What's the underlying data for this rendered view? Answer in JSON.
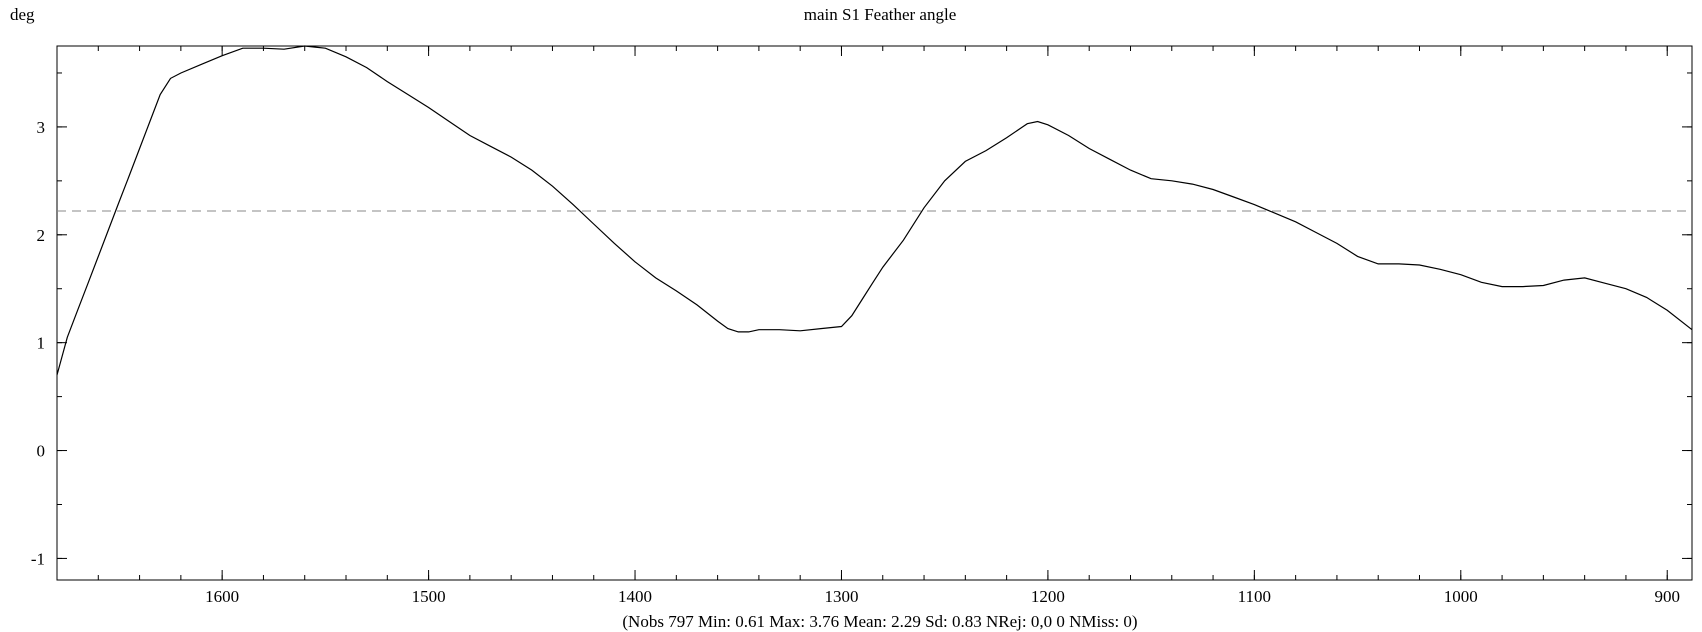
{
  "chart_data": {
    "type": "line",
    "title": "main S1 Feather angle",
    "ylabel": "deg",
    "xlabel": "",
    "caption": "(Nobs 797 Min: 0.61 Max: 3.76 Mean: 2.29 Sd: 0.83 NRej: 0,0 0 NMiss: 0)",
    "xlim": [
      1680,
      888
    ],
    "ylim": [
      -1.2,
      3.75
    ],
    "x_ticks": [
      1600,
      1500,
      1400,
      1300,
      1200,
      1100,
      1000,
      900
    ],
    "x_tick_labels": [
      "1600",
      "1500",
      "1400",
      "1300",
      "1200",
      "1100",
      "1000",
      "900"
    ],
    "y_ticks": [
      -1,
      0,
      1,
      2,
      3
    ],
    "y_tick_labels": [
      "-1",
      "0",
      "1",
      "2",
      "3"
    ],
    "reference_line": {
      "y": 2.22,
      "style": "dashed",
      "color": "#888888"
    },
    "series": [
      {
        "color": "#000000",
        "x": [
          1680,
          1675,
          1670,
          1665,
          1660,
          1655,
          1650,
          1645,
          1640,
          1635,
          1630,
          1625,
          1620,
          1610,
          1600,
          1590,
          1580,
          1570,
          1560,
          1555,
          1550,
          1540,
          1530,
          1520,
          1510,
          1500,
          1490,
          1480,
          1470,
          1460,
          1450,
          1440,
          1430,
          1420,
          1410,
          1400,
          1390,
          1380,
          1370,
          1360,
          1355,
          1350,
          1345,
          1340,
          1330,
          1320,
          1310,
          1300,
          1295,
          1290,
          1285,
          1280,
          1270,
          1260,
          1250,
          1240,
          1230,
          1220,
          1210,
          1205,
          1200,
          1190,
          1180,
          1170,
          1160,
          1150,
          1140,
          1130,
          1120,
          1110,
          1100,
          1090,
          1080,
          1070,
          1060,
          1050,
          1040,
          1030,
          1020,
          1010,
          1000,
          990,
          980,
          970,
          960,
          950,
          940,
          930,
          920,
          910,
          900,
          888
        ],
        "values": [
          0.7,
          1.05,
          1.3,
          1.55,
          1.8,
          2.05,
          2.3,
          2.55,
          2.8,
          3.05,
          3.3,
          3.45,
          3.5,
          3.58,
          3.66,
          3.73,
          3.73,
          3.72,
          3.75,
          3.74,
          3.73,
          3.65,
          3.55,
          3.42,
          3.3,
          3.18,
          3.05,
          2.92,
          2.82,
          2.72,
          2.6,
          2.45,
          2.28,
          2.1,
          1.92,
          1.75,
          1.6,
          1.48,
          1.35,
          1.2,
          1.13,
          1.1,
          1.1,
          1.12,
          1.12,
          1.11,
          1.13,
          1.15,
          1.25,
          1.4,
          1.55,
          1.7,
          1.95,
          2.25,
          2.5,
          2.68,
          2.78,
          2.9,
          3.03,
          3.05,
          3.02,
          2.92,
          2.8,
          2.7,
          2.6,
          2.52,
          2.5,
          2.47,
          2.42,
          2.35,
          2.28,
          2.2,
          2.12,
          2.02,
          1.92,
          1.8,
          1.73,
          1.73,
          1.72,
          1.68,
          1.63,
          1.56,
          1.52,
          1.52,
          1.53,
          1.58,
          1.6,
          1.55,
          1.5,
          1.42,
          1.3,
          1.12
        ]
      }
    ]
  }
}
